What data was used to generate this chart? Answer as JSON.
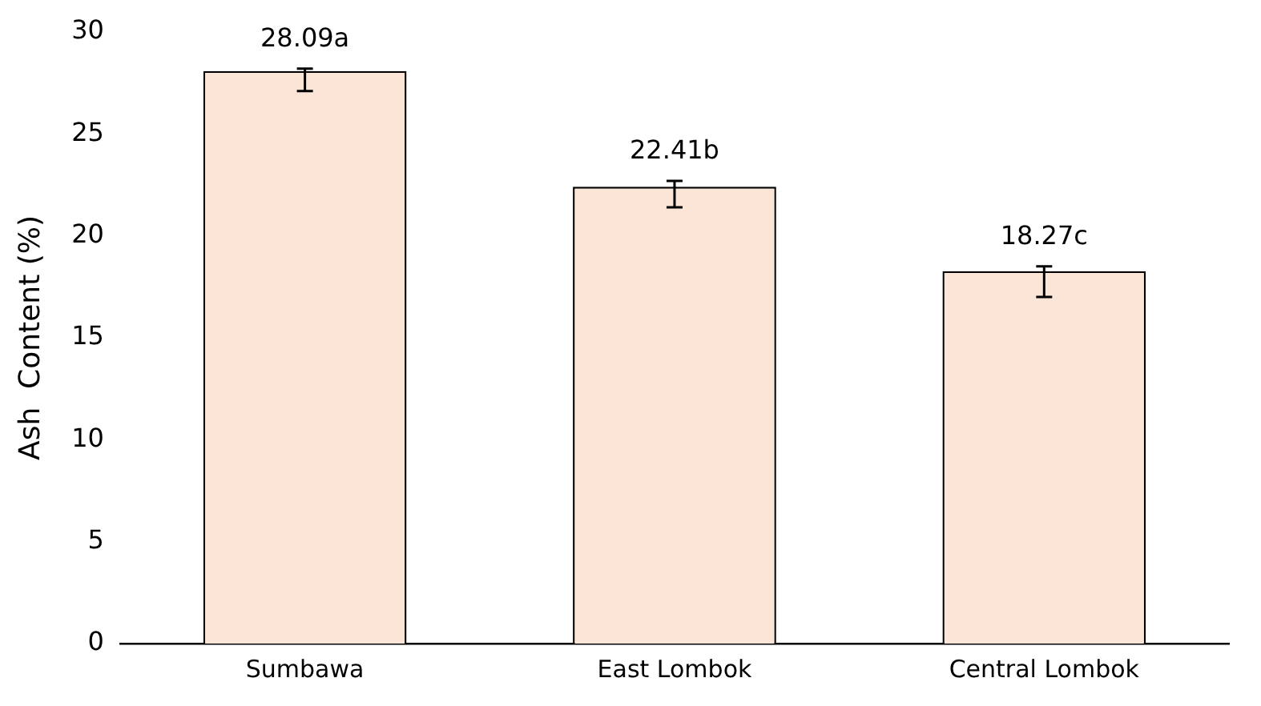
{
  "chart_data": {
    "type": "bar",
    "ylabel": "Ash  Content (%)",
    "categories": [
      "Sumbawa",
      "East Lombok",
      "Central Lombok"
    ],
    "values": [
      28.09,
      22.41,
      18.27
    ],
    "value_labels": [
      "28.09a",
      "22.41b",
      "18.27c"
    ],
    "errors": [
      [
        27.1,
        28.2
      ],
      [
        21.4,
        22.7
      ],
      [
        17.0,
        18.5
      ]
    ],
    "color": "#fbe5d6",
    "ylim": [
      0,
      30
    ],
    "yticks": [
      0,
      5,
      10,
      15,
      20,
      25,
      30
    ],
    "grid": false,
    "legend": false
  }
}
